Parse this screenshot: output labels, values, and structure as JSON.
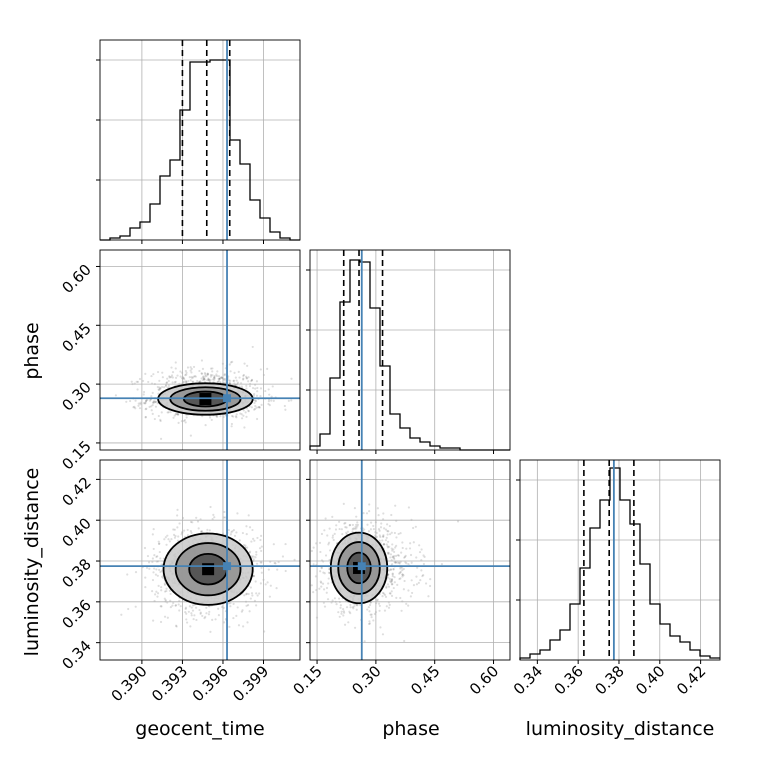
{
  "colors": {
    "truth": "#4682b4",
    "hist": "#000000",
    "grid": "#b0b0b0",
    "contour": "#000000"
  },
  "chart_data": {
    "type": "corner",
    "parameters": [
      "geocent_time",
      "phase",
      "luminosity_distance"
    ],
    "truths": {
      "geocent_time": 0.3963,
      "phase": 0.264,
      "luminosity_distance": 0.3775
    },
    "quantiles": {
      "geocent_time": [
        0.393,
        0.3948,
        0.3965
      ],
      "phase": [
        0.218,
        0.257,
        0.317
      ],
      "luminosity_distance": [
        0.3628,
        0.3752,
        0.3873
      ]
    },
    "ranges": {
      "geocent_time": [
        0.3869,
        0.4017
      ],
      "phase": [
        0.132,
        0.642
      ],
      "luminosity_distance": [
        0.3315,
        0.4295
      ]
    },
    "ticks": {
      "geocent_time": [
        "0.390",
        "0.393",
        "0.396",
        "0.399"
      ],
      "phase": [
        "0.15",
        "0.30",
        "0.45",
        "0.60"
      ],
      "luminosity_distance": [
        "0.34",
        "0.36",
        "0.38",
        "0.40",
        "0.42"
      ]
    },
    "hist_max": 0.5,
    "histograms": {
      "geocent_time": {
        "bins": [
          0.3869,
          0.38764,
          0.38838,
          0.38912,
          0.38986,
          0.3906,
          0.39134,
          0.39208,
          0.39282,
          0.39356,
          0.3943,
          0.39504,
          0.39578,
          0.39652,
          0.39726,
          0.398,
          0.39874,
          0.39948,
          0.40022,
          0.40096,
          0.4017
        ],
        "values": [
          0,
          0.005,
          0.01,
          0.03,
          0.045,
          0.09,
          0.16,
          0.2,
          0.325,
          0.445,
          0.445,
          0.45,
          0.45,
          0.25,
          0.19,
          0.1,
          0.055,
          0.02,
          0.005,
          0.0
        ]
      },
      "phase": {
        "bins": [
          0.132,
          0.1575,
          0.183,
          0.2085,
          0.234,
          0.2595,
          0.285,
          0.3105,
          0.336,
          0.3615,
          0.387,
          0.4125,
          0.438,
          0.4635,
          0.489,
          0.5145,
          0.54,
          0.5655,
          0.591,
          0.6165,
          0.642
        ],
        "values": [
          0.01,
          0.04,
          0.18,
          0.37,
          0.475,
          0.47,
          0.355,
          0.21,
          0.09,
          0.055,
          0.03,
          0.02,
          0.01,
          0.005,
          0.005,
          0.0,
          0.0,
          0.0,
          0.0,
          0.0
        ]
      },
      "luminosity_distance": {
        "bins": [
          0.3315,
          0.3364,
          0.3413,
          0.3462,
          0.3511,
          0.356,
          0.3609,
          0.3658,
          0.3707,
          0.3756,
          0.3805,
          0.3854,
          0.3903,
          0.3952,
          0.4001,
          0.405,
          0.4099,
          0.4148,
          0.4197,
          0.4246,
          0.4295
        ],
        "values": [
          0.005,
          0.015,
          0.025,
          0.05,
          0.075,
          0.14,
          0.23,
          0.33,
          0.4,
          0.48,
          0.4,
          0.34,
          0.24,
          0.14,
          0.09,
          0.06,
          0.045,
          0.025,
          0.01,
          0.005
        ]
      }
    },
    "pairs": [
      {
        "x": "geocent_time",
        "y": "phase",
        "center": [
          0.3947,
          0.262
        ],
        "contours": [
          [
            0.0035,
            0.04
          ],
          [
            0.0026,
            0.03
          ],
          [
            0.0016,
            0.019
          ]
        ]
      },
      {
        "x": "geocent_time",
        "y": "luminosity_distance",
        "center": [
          0.3949,
          0.376
        ],
        "contours": [
          [
            0.0033,
            0.0175
          ],
          [
            0.0024,
            0.0128
          ],
          [
            0.0014,
            0.0075
          ]
        ]
      },
      {
        "x": "phase",
        "y": "luminosity_distance",
        "center": [
          0.257,
          0.3766
        ],
        "contours": [
          [
            0.072,
            0.0173
          ],
          [
            0.053,
            0.0127
          ],
          [
            0.03,
            0.0075
          ]
        ]
      }
    ]
  }
}
